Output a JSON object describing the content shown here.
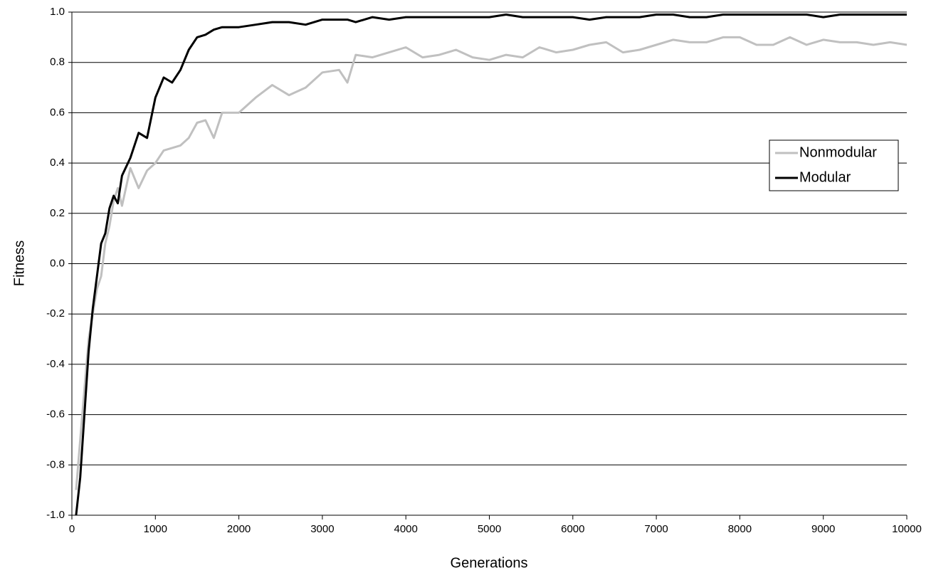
{
  "chart_data": {
    "type": "line",
    "xlabel": "Generations",
    "ylabel": "Fitness",
    "x": [
      50,
      100,
      150,
      200,
      250,
      300,
      350,
      400,
      450,
      500,
      550,
      600,
      700,
      800,
      900,
      1000,
      1100,
      1200,
      1300,
      1400,
      1500,
      1600,
      1700,
      1800,
      2000,
      2200,
      2400,
      2600,
      2800,
      3000,
      3200,
      3300,
      3400,
      3600,
      3800,
      4000,
      4200,
      4400,
      4600,
      4800,
      5000,
      5200,
      5400,
      5600,
      5800,
      6000,
      6200,
      6400,
      6600,
      6800,
      7000,
      7200,
      7400,
      7600,
      7800,
      8000,
      8200,
      8400,
      8600,
      8800,
      9000,
      9200,
      9400,
      9600,
      9800,
      10000
    ],
    "series": [
      {
        "name": "Nonmodular",
        "color": "#c0c0c0",
        "values": [
          -0.9,
          -0.7,
          -0.5,
          -0.3,
          -0.2,
          -0.1,
          -0.05,
          0.08,
          0.15,
          0.25,
          0.3,
          0.23,
          0.38,
          0.3,
          0.37,
          0.4,
          0.45,
          0.46,
          0.47,
          0.5,
          0.56,
          0.57,
          0.5,
          0.6,
          0.6,
          0.66,
          0.71,
          0.67,
          0.7,
          0.76,
          0.77,
          0.72,
          0.83,
          0.82,
          0.84,
          0.86,
          0.82,
          0.83,
          0.85,
          0.82,
          0.81,
          0.83,
          0.82,
          0.86,
          0.84,
          0.85,
          0.87,
          0.88,
          0.84,
          0.85,
          0.87,
          0.89,
          0.88,
          0.88,
          0.9,
          0.9,
          0.87,
          0.87,
          0.9,
          0.87,
          0.89,
          0.88,
          0.88,
          0.87,
          0.88,
          0.87
        ]
      },
      {
        "name": "Modular",
        "color": "#000000",
        "values": [
          -1.0,
          -0.85,
          -0.6,
          -0.35,
          -0.18,
          -0.05,
          0.08,
          0.12,
          0.22,
          0.27,
          0.24,
          0.35,
          0.42,
          0.52,
          0.5,
          0.66,
          0.74,
          0.72,
          0.77,
          0.85,
          0.9,
          0.91,
          0.93,
          0.94,
          0.94,
          0.95,
          0.96,
          0.96,
          0.95,
          0.97,
          0.97,
          0.97,
          0.96,
          0.98,
          0.97,
          0.98,
          0.98,
          0.98,
          0.98,
          0.98,
          0.98,
          0.99,
          0.98,
          0.98,
          0.98,
          0.98,
          0.97,
          0.98,
          0.98,
          0.98,
          0.99,
          0.99,
          0.98,
          0.98,
          0.99,
          0.99,
          0.99,
          0.99,
          0.99,
          0.99,
          0.98,
          0.99,
          0.99,
          0.99,
          0.99,
          0.99
        ]
      }
    ],
    "xlim": [
      0,
      10000
    ],
    "xticks": [
      0,
      1000,
      2000,
      3000,
      4000,
      5000,
      6000,
      7000,
      8000,
      9000,
      10000
    ],
    "ylim": [
      -1,
      1
    ],
    "yticks": [
      {
        "value": -1,
        "label": "-1.0"
      },
      -0.8,
      -0.6,
      -0.4,
      -0.2,
      {
        "value": 0,
        "label": "0.0"
      },
      0.2,
      0.4,
      0.6,
      0.8,
      {
        "value": 1,
        "label": "1.0"
      }
    ],
    "grid": true,
    "legend": "right"
  }
}
